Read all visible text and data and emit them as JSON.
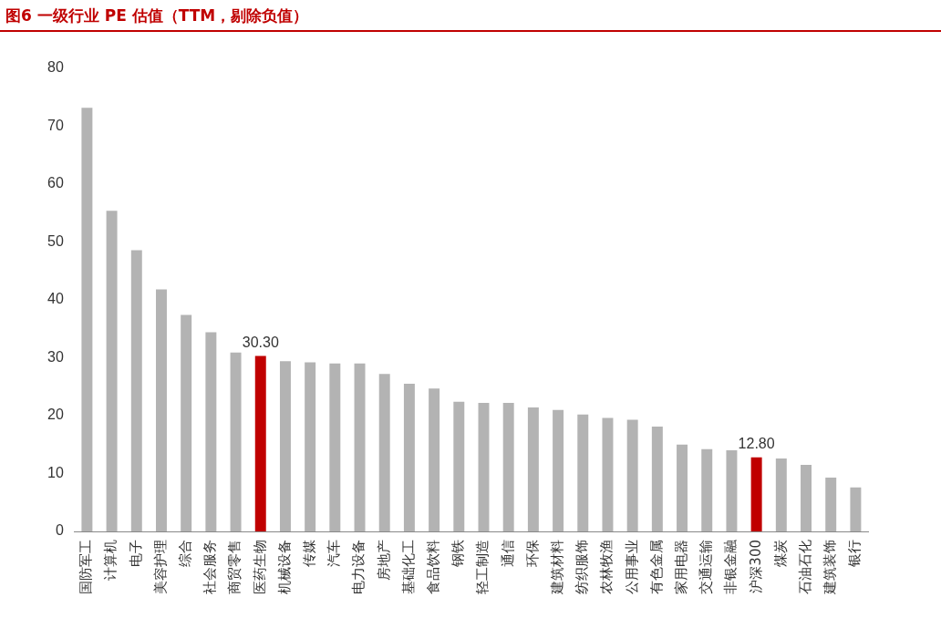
{
  "chart_data": {
    "type": "bar",
    "title": "图6  一级行业 PE 估值（TTM，剔除负值）",
    "categories": [
      "国防军工",
      "计算机",
      "电子",
      "美容护理",
      "综合",
      "社会服务",
      "商贸零售",
      "医药生物",
      "机械设备",
      "传媒",
      "汽车",
      "电力设备",
      "房地产",
      "基础化工",
      "食品饮料",
      "钢铁",
      "轻工制造",
      "通信",
      "环保",
      "建筑材料",
      "纺织服饰",
      "农林牧渔",
      "公用事业",
      "有色金属",
      "家用电器",
      "交通运输",
      "非银金融",
      "沪深300",
      "煤炭",
      "石油石化",
      "建筑装饰",
      "银行"
    ],
    "values": [
      73.2,
      55.4,
      48.6,
      41.8,
      37.4,
      34.4,
      30.9,
      30.3,
      29.4,
      29.2,
      29.0,
      29.0,
      27.2,
      25.5,
      24.7,
      22.4,
      22.2,
      22.2,
      21.4,
      21.0,
      20.2,
      19.6,
      19.3,
      18.1,
      15.0,
      14.2,
      14.0,
      12.8,
      12.6,
      11.5,
      9.3,
      7.6
    ],
    "colors": [
      "#b3b3b3",
      "#b3b3b3",
      "#b3b3b3",
      "#b3b3b3",
      "#b3b3b3",
      "#b3b3b3",
      "#b3b3b3",
      "#c00000",
      "#b3b3b3",
      "#b3b3b3",
      "#b3b3b3",
      "#b3b3b3",
      "#b3b3b3",
      "#b3b3b3",
      "#b3b3b3",
      "#b3b3b3",
      "#b3b3b3",
      "#b3b3b3",
      "#b3b3b3",
      "#b3b3b3",
      "#b3b3b3",
      "#b3b3b3",
      "#b3b3b3",
      "#b3b3b3",
      "#b3b3b3",
      "#b3b3b3",
      "#b3b3b3",
      "#c00000",
      "#b3b3b3",
      "#b3b3b3",
      "#b3b3b3",
      "#b3b3b3"
    ],
    "value_labels": [
      null,
      null,
      null,
      null,
      null,
      null,
      null,
      "30.30",
      null,
      null,
      null,
      null,
      null,
      null,
      null,
      null,
      null,
      null,
      null,
      null,
      null,
      null,
      null,
      null,
      null,
      null,
      null,
      "12.80",
      null,
      null,
      null,
      null
    ],
    "ylim": [
      0,
      80
    ],
    "yticks": [
      0,
      10,
      20,
      30,
      40,
      50,
      60,
      70,
      80
    ],
    "grid": false,
    "legend": false
  }
}
